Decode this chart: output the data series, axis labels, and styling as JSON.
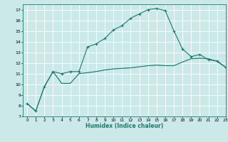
{
  "xlabel": "Humidex (Indice chaleur)",
  "xlim": [
    -0.5,
    23
  ],
  "ylim": [
    7,
    17.5
  ],
  "yticks": [
    7,
    8,
    9,
    10,
    11,
    12,
    13,
    14,
    15,
    16,
    17
  ],
  "xticks": [
    0,
    1,
    2,
    3,
    4,
    5,
    6,
    7,
    8,
    9,
    10,
    11,
    12,
    13,
    14,
    15,
    16,
    17,
    18,
    19,
    20,
    21,
    22,
    23
  ],
  "bg_color": "#cce9e9",
  "grid_color": "#ffffff",
  "line_color": "#1a7a6e",
  "line1_x": [
    0,
    1,
    2,
    3,
    4,
    5,
    6,
    7,
    8,
    9,
    10,
    11,
    12,
    13,
    14,
    15,
    16,
    17,
    18,
    19,
    20,
    21,
    22,
    23
  ],
  "line1_y": [
    8.2,
    7.5,
    9.8,
    11.2,
    11.0,
    11.2,
    11.2,
    13.5,
    13.8,
    14.3,
    15.1,
    15.5,
    16.2,
    16.6,
    17.0,
    17.1,
    16.9,
    15.0,
    13.3,
    12.6,
    12.8,
    12.3,
    12.2,
    11.6
  ],
  "line2_x": [
    0,
    1,
    2,
    3,
    4,
    5,
    6,
    7,
    8,
    9,
    10,
    11,
    12,
    13,
    14,
    15,
    16,
    17,
    18,
    19,
    20,
    21,
    22,
    23
  ],
  "line2_y": [
    8.2,
    7.5,
    9.8,
    11.2,
    10.1,
    10.1,
    11.0,
    11.1,
    11.2,
    11.35,
    11.45,
    11.5,
    11.55,
    11.65,
    11.75,
    11.8,
    11.75,
    11.75,
    12.1,
    12.4,
    12.45,
    12.4,
    12.15,
    11.6
  ],
  "line3_x": [
    2,
    3,
    4,
    5,
    6,
    7,
    8,
    9,
    10,
    11,
    12,
    13,
    14,
    15,
    16,
    17,
    18,
    19,
    20,
    21,
    22,
    23
  ],
  "line3_y": [
    9.8,
    11.2,
    10.1,
    10.1,
    11.0,
    11.1,
    11.2,
    11.35,
    11.45,
    11.5,
    11.55,
    11.65,
    11.75,
    11.8,
    11.75,
    11.75,
    12.1,
    12.4,
    12.45,
    12.4,
    12.15,
    11.6
  ]
}
